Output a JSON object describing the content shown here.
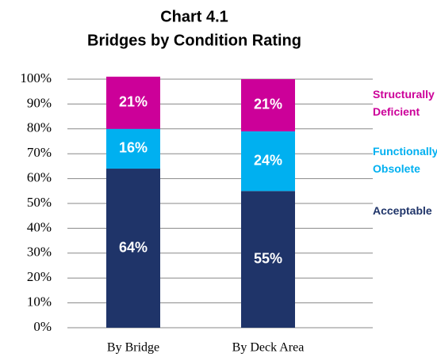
{
  "chart_data": {
    "type": "stacked_bar",
    "title": "Chart 4.1",
    "subtitle": "Bridges by Condition Rating",
    "categories": [
      "By Bridge",
      "By Deck Area"
    ],
    "series": [
      {
        "name": "Acceptable",
        "color": "#1f3469",
        "values": [
          64,
          55
        ],
        "value_labels": [
          "64%",
          "55%"
        ]
      },
      {
        "name": "Functionally Obsolete",
        "color": "#00b0f0",
        "values": [
          16,
          24
        ],
        "value_labels": [
          "16%",
          "24%"
        ]
      },
      {
        "name": "Structurally Deficient",
        "color": "#cc0099",
        "values": [
          21,
          21
        ],
        "value_labels": [
          "21%",
          "21%"
        ]
      }
    ],
    "ylim": [
      0,
      100
    ],
    "yticks": [
      {
        "value": 0,
        "label": "0%"
      },
      {
        "value": 10,
        "label": "10%"
      },
      {
        "value": 20,
        "label": "20%"
      },
      {
        "value": 30,
        "label": "30%"
      },
      {
        "value": 40,
        "label": "40%"
      },
      {
        "value": 50,
        "label": "50%"
      },
      {
        "value": 60,
        "label": "60%"
      },
      {
        "value": 70,
        "label": "70%"
      },
      {
        "value": 80,
        "label": "80%"
      },
      {
        "value": 90,
        "label": "90%"
      },
      {
        "value": 100,
        "label": "100%"
      }
    ],
    "grid": true,
    "legend": "right"
  }
}
